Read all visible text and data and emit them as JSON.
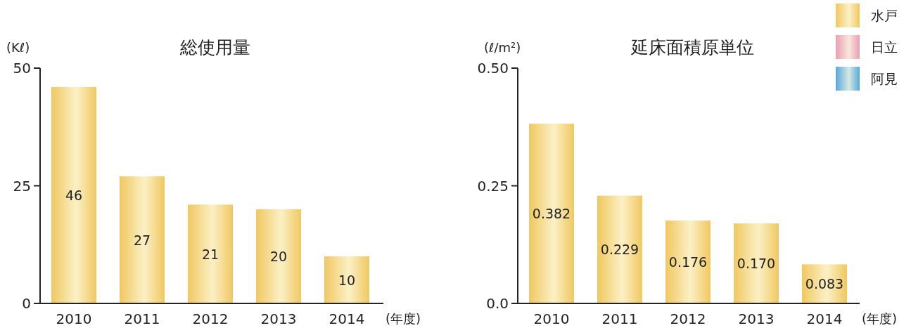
{
  "chart_data": [
    {
      "type": "bar",
      "title": "総使用量",
      "ylabel": "(Kℓ)",
      "xlabel": "(年度)",
      "categories": [
        "2010",
        "2011",
        "2012",
        "2013",
        "2014"
      ],
      "values": [
        46,
        27,
        21,
        20,
        10
      ],
      "color": "#f0c860",
      "ylim": [
        0,
        50
      ],
      "yticks": [
        0,
        25,
        50
      ],
      "data_labels": true,
      "grid": false
    },
    {
      "type": "bar",
      "title": "延床面積原単位",
      "ylabel": "(ℓ/m²)",
      "xlabel": "(年度)",
      "categories": [
        "2010",
        "2011",
        "2012",
        "2013",
        "2014"
      ],
      "series": [
        {
          "name": "水戸",
          "color": "#f0c860",
          "values": [
            0.382,
            0.229,
            0.176,
            0.17,
            0.083
          ],
          "value_labels": [
            "0.382",
            "0.229",
            "0.176",
            "0.170",
            "0.083"
          ]
        },
        {
          "name": "日立",
          "color": "#e8a0b4",
          "values": [
            null,
            null,
            null,
            null,
            null
          ]
        },
        {
          "name": "阿見",
          "color": "#5aa8d8",
          "values": [
            null,
            null,
            null,
            null,
            null
          ]
        }
      ],
      "ylim": [
        0,
        0.5
      ],
      "yticks": [
        {
          "value": 0,
          "label": "0.0"
        },
        {
          "value": 0.25,
          "label": "0.25"
        },
        {
          "value": 0.5,
          "label": "0.50"
        }
      ],
      "grid": false,
      "legend": "top right"
    }
  ]
}
